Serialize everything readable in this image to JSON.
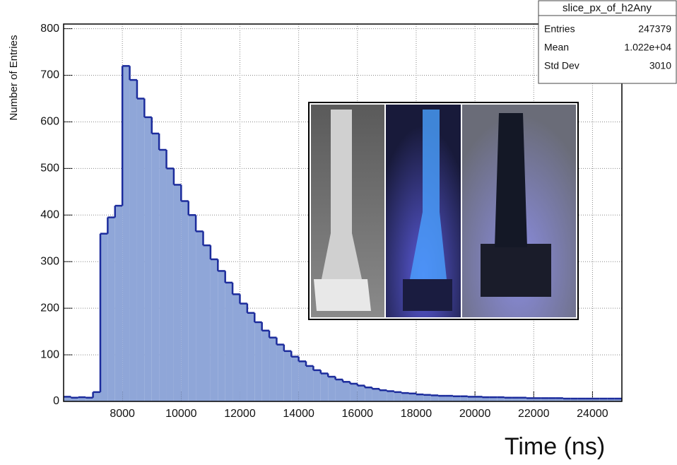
{
  "chart_data": {
    "type": "histogram",
    "x_label": "Time (ns)",
    "y_label": "Number of Entries",
    "bins": [
      6000,
      6250,
      6500,
      6750,
      7000,
      7250,
      7500,
      7750,
      8000,
      8250,
      8500,
      8750,
      9000,
      9250,
      9500,
      9750,
      10000,
      10250,
      10500,
      10750,
      11000,
      11250,
      11500,
      11750,
      12000,
      12250,
      12500,
      12750,
      13000,
      13250,
      13500,
      13750,
      14000,
      14250,
      14500,
      14750,
      15000,
      15250,
      15500,
      15750,
      16000,
      16250,
      16500,
      16750,
      17000,
      17250,
      17500,
      17750,
      18000,
      18250,
      18500,
      18750,
      19000,
      19250,
      19500,
      19750,
      20000,
      20250,
      20500,
      20750,
      21000,
      21250,
      21500,
      21750,
      22000,
      22250,
      22500,
      22750,
      23000,
      23250,
      23500,
      23750,
      24000,
      24250,
      24500,
      24750,
      25000
    ],
    "values": [
      10,
      8,
      9,
      8,
      20,
      360,
      395,
      420,
      720,
      690,
      650,
      610,
      575,
      540,
      500,
      465,
      430,
      400,
      365,
      335,
      305,
      280,
      255,
      230,
      210,
      190,
      170,
      152,
      137,
      122,
      108,
      96,
      86,
      76,
      67,
      60,
      53,
      47,
      42,
      38,
      34,
      30,
      27,
      24,
      22,
      20,
      18,
      17,
      15,
      14,
      13,
      12,
      12,
      11,
      11,
      10,
      10,
      9,
      9,
      9,
      8,
      8,
      8,
      7,
      7,
      7,
      7,
      7,
      6,
      6,
      6,
      6,
      6,
      6,
      6,
      6
    ],
    "fill_color": "#8fa6d8",
    "line_color": "#1c2c9c",
    "xlim": [
      6000,
      25000
    ],
    "ylim": [
      0,
      810
    ],
    "xticks": [
      8000,
      10000,
      12000,
      14000,
      16000,
      18000,
      20000,
      22000,
      24000
    ],
    "yticks": [
      0,
      100,
      200,
      300,
      400,
      500,
      600,
      700,
      800
    ],
    "grid": true,
    "stats": {
      "title": "slice_px_of_h2Any",
      "rows": [
        [
          "Entries",
          "247379"
        ],
        [
          "Mean",
          "1.022e+04"
        ],
        [
          "Std Dev",
          "3010"
        ]
      ]
    }
  }
}
